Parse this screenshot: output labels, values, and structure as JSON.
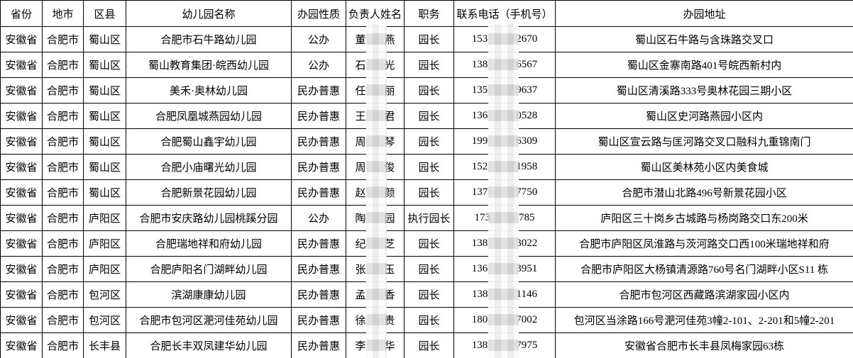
{
  "table": {
    "headers": [
      "省份",
      "地市",
      "区县",
      "幼儿园名称",
      "办园性质",
      "负责人姓名",
      "职务",
      "联系电话（手机号）",
      "办园地址"
    ],
    "rows": [
      {
        "province": "安徽省",
        "city": "合肥市",
        "district": "蜀山区",
        "kindergarten": "合肥市石牛路幼儿园",
        "nature": "公办",
        "principal": {
          "prefix": "董",
          "suffix": "燕"
        },
        "title": "园长",
        "phone": {
          "prefix": "153",
          "suffix": "2670"
        },
        "address": "蜀山区石牛路与含珠路交叉口"
      },
      {
        "province": "安徽省",
        "city": "合肥市",
        "district": "蜀山区",
        "kindergarten": "蜀山教育集团·皖西幼儿园",
        "nature": "公办",
        "principal": {
          "prefix": "石",
          "suffix": "光"
        },
        "title": "园长",
        "phone": {
          "prefix": "138",
          "suffix": "6567"
        },
        "address": "蜀山区金寨南路401号皖西新村内"
      },
      {
        "province": "安徽省",
        "city": "合肥市",
        "district": "蜀山区",
        "kindergarten": "美禾·奥林幼儿园",
        "nature": "民办普惠",
        "principal": {
          "prefix": "任",
          "suffix": "丽"
        },
        "title": "园长",
        "phone": {
          "prefix": "135",
          "suffix": "9637"
        },
        "address": "蜀山区清溪路333号奥林花园三期小区"
      },
      {
        "province": "安徽省",
        "city": "合肥市",
        "district": "蜀山区",
        "kindergarten": "合肥凤凰城燕园幼儿园",
        "nature": "民办普惠",
        "principal": {
          "prefix": "王",
          "suffix": "君"
        },
        "title": "园长",
        "phone": {
          "prefix": "136",
          "suffix": "0528"
        },
        "address": "蜀山区史河路燕园小区内"
      },
      {
        "province": "安徽省",
        "city": "合肥市",
        "district": "蜀山区",
        "kindergarten": "合肥蜀山鑫宇幼儿园",
        "nature": "民办普惠",
        "principal": {
          "prefix": "周",
          "suffix": "琴"
        },
        "title": "园长",
        "phone": {
          "prefix": "199",
          "suffix": "6309"
        },
        "address": "蜀山区宣云路与匡河路交叉口融科九重锦南门"
      },
      {
        "province": "安徽省",
        "city": "合肥市",
        "district": "蜀山区",
        "kindergarten": "合肥小庙曙光幼儿园",
        "nature": "民办普惠",
        "principal": {
          "prefix": "周",
          "suffix": "俊"
        },
        "title": "园长",
        "phone": {
          "prefix": "152",
          "suffix": "1958"
        },
        "address": "蜀山区美林苑小区内美食城"
      },
      {
        "province": "安徽省",
        "city": "合肥市",
        "district": "蜀山区",
        "kindergarten": "合肥新景花园幼儿园",
        "nature": "民办普惠",
        "principal": {
          "prefix": "赵",
          "suffix": "颜"
        },
        "title": "园长",
        "phone": {
          "prefix": "137",
          "suffix": "7750"
        },
        "address": "合肥市潜山北路496号新景花园小区"
      },
      {
        "province": "安徽省",
        "city": "合肥市",
        "district": "庐阳区",
        "kindergarten": "合肥市安庆路幼儿园桃蹊分园",
        "nature": "公办",
        "principal": {
          "prefix": "陶",
          "suffix": "园"
        },
        "title": "执行园长",
        "phone": {
          "prefix": "173",
          "suffix": "785"
        },
        "address": "庐阳区三十岗乡古城路与杨岗路交口东200米"
      },
      {
        "province": "安徽省",
        "city": "合肥市",
        "district": "庐阳区",
        "kindergarten": "合肥瑞地祥和府幼儿园",
        "nature": "民办普惠",
        "principal": {
          "prefix": "纪",
          "suffix": "芝"
        },
        "title": "园长",
        "phone": {
          "prefix": "138",
          "suffix": "3022"
        },
        "address": "合肥市庐阳区凤淮路与茨河路交口西100米瑞地祥和府"
      },
      {
        "province": "安徽省",
        "city": "合肥市",
        "district": "庐阳区",
        "kindergarten": "合肥庐阳名门湖畔幼儿园",
        "nature": "民办普惠",
        "principal": {
          "prefix": "张",
          "suffix": "玉"
        },
        "title": "园长",
        "phone": {
          "prefix": "136",
          "suffix": "3951"
        },
        "address": "合肥市庐阳区大杨镇清源路760号名门湖畔小区S11 栋"
      },
      {
        "province": "安徽省",
        "city": "合肥市",
        "district": "包河区",
        "kindergarten": "滨湖康康幼儿园",
        "nature": "民办普惠",
        "principal": {
          "prefix": "孟",
          "suffix": "香"
        },
        "title": "园长",
        "phone": {
          "prefix": "138",
          "suffix": "1146"
        },
        "address": "合肥市包河区西藏路滨湖家园小区内"
      },
      {
        "province": "安徽省",
        "city": "合肥市",
        "district": "包河区",
        "kindergarten": "合肥市包河区淝河佳苑幼儿园",
        "nature": "民办普惠",
        "principal": {
          "prefix": "徐",
          "suffix": "贵"
        },
        "title": "园长",
        "phone": {
          "prefix": "180",
          "suffix": "7002"
        },
        "address": "包河区当涂路166号淝河佳苑3幢2-101、2-201和5幢2-201"
      },
      {
        "province": "安徽省",
        "city": "合肥市",
        "district": "长丰县",
        "kindergarten": "合肥长丰双凤建华幼儿园",
        "nature": "民办普惠",
        "principal": {
          "prefix": "李",
          "suffix": "华"
        },
        "title": "园长",
        "phone": {
          "prefix": "138",
          "suffix": "7975"
        },
        "address": "安徽省合肥市长丰县凤梅家园63栋"
      }
    ]
  },
  "redaction": {
    "name_strip": "pixelated-mosaic",
    "phone_strip": "pixelated-mosaic"
  },
  "colors": {
    "border": "#000000",
    "background": "#ffffff",
    "text": "#000000",
    "redaction_block": "#bebebe",
    "redaction_band": "#f8f8f8"
  }
}
